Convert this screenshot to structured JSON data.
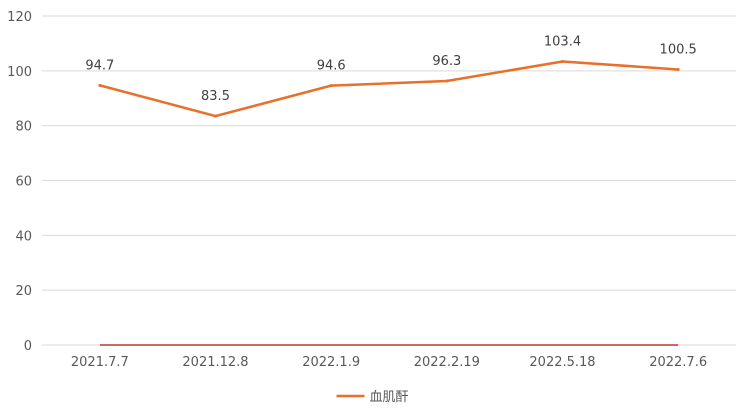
{
  "chart_data": {
    "type": "line",
    "title": "",
    "xlabel": "",
    "ylabel": "",
    "categories": [
      "2021.7.7",
      "2021.12.8",
      "2022.1.9",
      "2022.2.19",
      "2022.5.18",
      "2022.7.6"
    ],
    "series": [
      {
        "name": "血肌酐",
        "values": [
          94.7,
          83.5,
          94.6,
          96.3,
          103.4,
          100.5
        ],
        "color": "#E8702A"
      }
    ],
    "data_labels": [
      "94.7",
      "83.5",
      "94.6",
      "96.3",
      "103.4",
      "100.5"
    ],
    "baseline": {
      "value": 0,
      "color": "#C0392B"
    },
    "ylim": [
      0,
      120
    ],
    "yticks": [
      0,
      20,
      40,
      60,
      80,
      100,
      120
    ],
    "ytick_labels": [
      "0",
      "20",
      "40",
      "60",
      "80",
      "100",
      "120"
    ],
    "grid": true,
    "grid_color": "#D9D9D9",
    "legend": {
      "position": "bottom-center"
    }
  }
}
